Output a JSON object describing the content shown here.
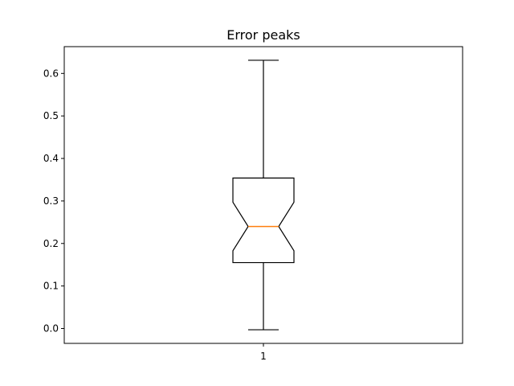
{
  "chart_data": {
    "type": "boxplot",
    "title": "Error peaks",
    "xlabel": "",
    "ylabel": "",
    "notched": true,
    "categories": [
      "1"
    ],
    "boxes": [
      {
        "label": "1",
        "whisker_low": -0.003,
        "q1": 0.155,
        "notch_low": 0.183,
        "median": 0.24,
        "notch_high": 0.297,
        "q3": 0.354,
        "whisker_high": 0.631
      }
    ],
    "ylim": [
      -0.035,
      0.663
    ],
    "yticks": [
      0.0,
      0.1,
      0.2,
      0.3,
      0.4,
      0.5,
      0.6
    ],
    "ytick_labels": [
      "0.0",
      "0.1",
      "0.2",
      "0.3",
      "0.4",
      "0.5",
      "0.6"
    ],
    "grid": false,
    "colors": {
      "box": "#000000",
      "median": "#ff7f0e",
      "axes": "#000000"
    }
  }
}
